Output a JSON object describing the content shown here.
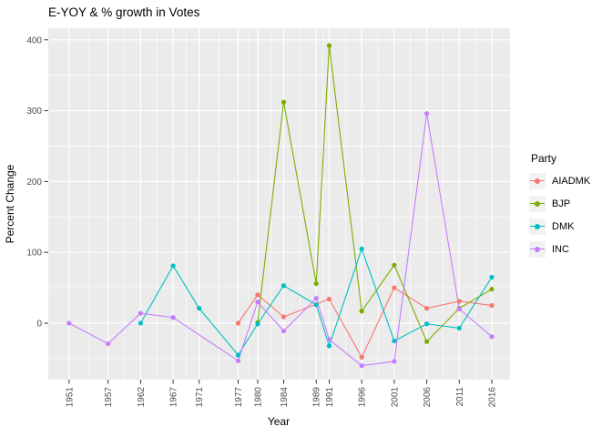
{
  "chart_data": {
    "type": "line",
    "title": "E-YOY & % growth in Votes",
    "xlabel": "Year",
    "ylabel": "Percent Change",
    "legend_title": "Party",
    "legend_position": "right",
    "grid": true,
    "x_ticks": [
      1951,
      1957,
      1962,
      1967,
      1971,
      1977,
      1980,
      1984,
      1989,
      1991,
      1996,
      2001,
      2006,
      2011,
      2016
    ],
    "y_ticks": [
      0,
      100,
      200,
      300,
      400
    ],
    "y_minor_ticks": [
      -50,
      50,
      150,
      250,
      350
    ],
    "xlim": [
      1947.8,
      2018.8
    ],
    "ylim": [
      -79.7,
      416.4
    ],
    "series": [
      {
        "name": "AIADMK",
        "color": "#F8766D",
        "points": [
          [
            1977,
            0
          ],
          [
            1980,
            40
          ],
          [
            1984,
            9
          ],
          [
            1991,
            34
          ],
          [
            1996,
            -48
          ],
          [
            2001,
            50
          ],
          [
            2006,
            21
          ],
          [
            2011,
            31
          ],
          [
            2016,
            25
          ]
        ]
      },
      {
        "name": "BJP",
        "color": "#7CAE00",
        "points": [
          [
            1980,
            1
          ],
          [
            1984,
            312
          ],
          [
            1989,
            56
          ],
          [
            1991,
            392
          ],
          [
            1996,
            17
          ],
          [
            2001,
            82
          ],
          [
            2006,
            -26
          ],
          [
            2011,
            21
          ],
          [
            2016,
            48
          ]
        ]
      },
      {
        "name": "DMK",
        "color": "#00BFC4",
        "points": [
          [
            1962,
            0
          ],
          [
            1967,
            81
          ],
          [
            1971,
            21
          ],
          [
            1977,
            -45
          ],
          [
            1980,
            -1
          ],
          [
            1984,
            53
          ],
          [
            1989,
            26
          ],
          [
            1991,
            -32
          ],
          [
            1996,
            105
          ],
          [
            2001,
            -25
          ],
          [
            2006,
            -1
          ],
          [
            2011,
            -7
          ],
          [
            2016,
            65
          ]
        ]
      },
      {
        "name": "INC",
        "color": "#C77CFF",
        "points": [
          [
            1951,
            0
          ],
          [
            1957,
            -29
          ],
          [
            1962,
            14
          ],
          [
            1967,
            8
          ],
          [
            1977,
            -53
          ],
          [
            1980,
            30
          ],
          [
            1984,
            -11
          ],
          [
            1989,
            35
          ],
          [
            1991,
            -23
          ],
          [
            1996,
            -60
          ],
          [
            2001,
            -54
          ],
          [
            2006,
            296
          ],
          [
            2011,
            20
          ],
          [
            2016,
            -19
          ]
        ]
      }
    ]
  },
  "theme": {
    "panel_bg": "#EBEBEB",
    "grid_color": "#FFFFFF",
    "tick_mark_color": "#333333",
    "tick_label_color": "#4D4D4D",
    "legend_key_bg": "#F2F2F2",
    "text_color": "#000000"
  }
}
